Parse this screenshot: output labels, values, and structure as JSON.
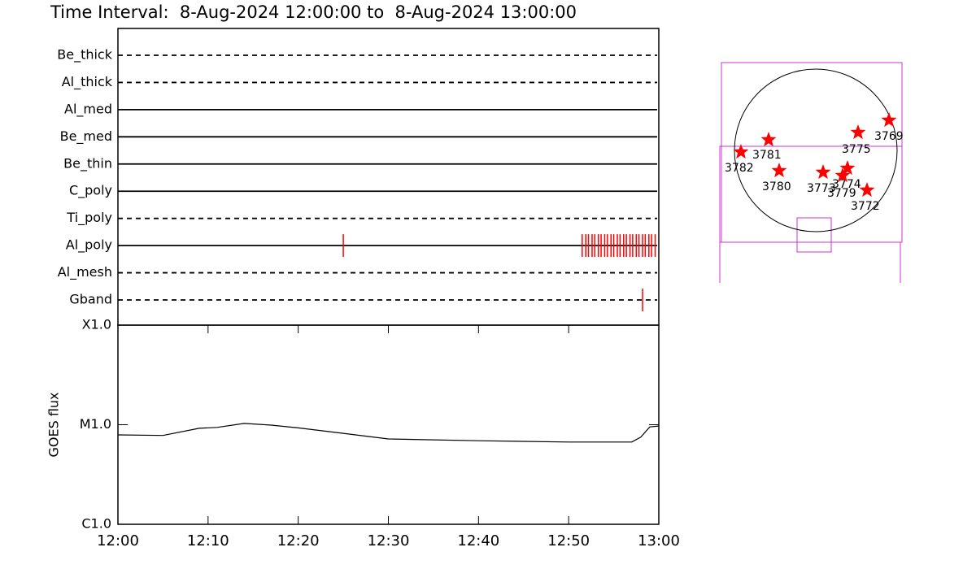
{
  "title": "Time Interval:  8-Aug-2024 12:00:00 to  8-Aug-2024 13:00:00",
  "chart_data": [
    {
      "type": "timeline",
      "xlim": [
        0,
        60
      ],
      "color": "#ff0000",
      "rows": [
        {
          "name": "Be_thick",
          "style": "dashed",
          "values": []
        },
        {
          "name": "Al_thick",
          "style": "dashed",
          "values": []
        },
        {
          "name": "Al_med",
          "style": "solid",
          "values": []
        },
        {
          "name": "Be_med",
          "style": "solid",
          "values": []
        },
        {
          "name": "Be_thin",
          "style": "solid",
          "values": []
        },
        {
          "name": "C_poly",
          "style": "solid",
          "values": []
        },
        {
          "name": "Ti_poly",
          "style": "dashed",
          "values": []
        },
        {
          "name": "Al_poly",
          "style": "solid",
          "values": [
            25,
            51.5,
            51.9,
            52.2,
            52.6,
            52.9,
            53.3,
            53.6,
            54.0,
            54.3,
            54.7,
            55.0,
            55.4,
            55.7,
            56.1,
            56.4,
            56.8,
            57.1,
            57.5,
            57.8,
            58.2,
            58.5,
            58.9,
            59.2,
            59.6
          ]
        },
        {
          "name": "Al_mesh",
          "style": "dashed",
          "values": []
        },
        {
          "name": "Gband",
          "style": "dashed",
          "values": [
            58.2
          ]
        }
      ]
    },
    {
      "type": "line",
      "ylabel": "GOES flux",
      "log_scale": true,
      "color": "#000000",
      "x": [
        0,
        5,
        9,
        11,
        14,
        17,
        20,
        25,
        30,
        40,
        50,
        57,
        58,
        59,
        60
      ],
      "values": [
        7.9e-06,
        7.8e-06,
        9.2e-06,
        9.4e-06,
        1.03e-05,
        9.9e-06,
        9.3e-06,
        8.2e-06,
        7.2e-06,
        6.9e-06,
        6.7e-06,
        6.7e-06,
        7.5e-06,
        9.5e-06,
        9.7e-06
      ],
      "xlim": [
        0,
        60
      ],
      "xticks": [
        {
          "value": 0,
          "label": "12:00"
        },
        {
          "value": 10,
          "label": "12:10"
        },
        {
          "value": 20,
          "label": "12:20"
        },
        {
          "value": 30,
          "label": "12:30"
        },
        {
          "value": 40,
          "label": "12:40"
        },
        {
          "value": 50,
          "label": "12:50"
        },
        {
          "value": 60,
          "label": "13:00"
        }
      ],
      "ylim": [
        1e-06,
        0.0001
      ],
      "yticks": [
        {
          "value": 0.0001,
          "label": "X1.0"
        },
        {
          "value": 1e-05,
          "label": "M1.0"
        },
        {
          "value": 1e-06,
          "label": "C1.0"
        }
      ]
    }
  ],
  "map": {
    "labels": [
      "3769",
      "3775",
      "3781",
      "3782",
      "3780",
      "3773",
      "3774",
      "3779",
      "3772"
    ]
  }
}
